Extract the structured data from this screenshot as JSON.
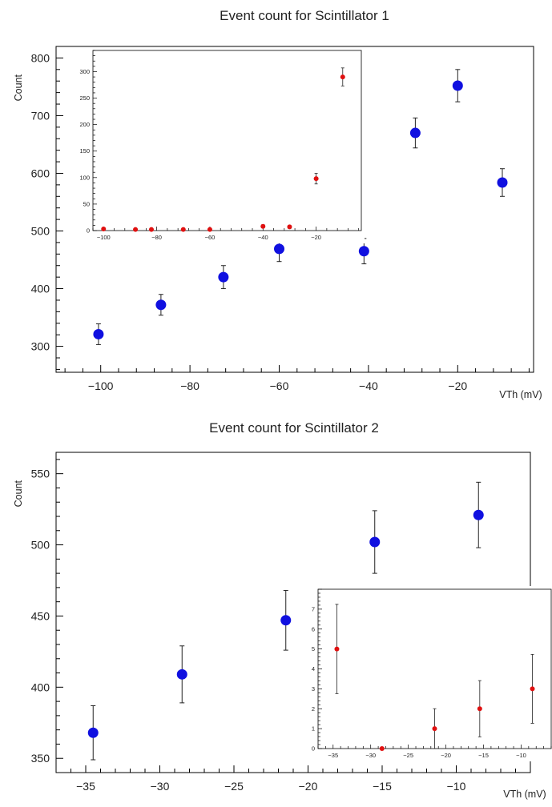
{
  "chart_data": [
    {
      "type": "scatter",
      "title": "Event count for Scintillator 1",
      "xlabel": "VTh (mV)",
      "ylabel": "Count",
      "xlim": [
        -110,
        -3
      ],
      "ylim": [
        255,
        820
      ],
      "x_ticks": [
        -100,
        -80,
        -60,
        -40,
        -20
      ],
      "y_ticks": [
        300,
        400,
        500,
        600,
        700,
        800
      ],
      "grid": false,
      "series": [
        {
          "color": "#1010e0",
          "points": [
            {
              "x": -100.5,
              "y": 321,
              "err": 18
            },
            {
              "x": -86.5,
              "y": 372,
              "err": 18
            },
            {
              "x": -72.5,
              "y": 420,
              "err": 20
            },
            {
              "x": -60,
              "y": 469,
              "err": 22
            },
            {
              "x": -41,
              "y": 465,
              "err": 22
            },
            {
              "x": -29.5,
              "y": 670,
              "err": 26
            },
            {
              "x": -20,
              "y": 752,
              "err": 28
            },
            {
              "x": -10,
              "y": 584,
              "err": 24
            }
          ]
        }
      ],
      "inset": {
        "type": "scatter",
        "xlim": [
          -104,
          -3
        ],
        "ylim": [
          0,
          340
        ],
        "x_ticks": [
          -100,
          -80,
          -60,
          -40,
          -20
        ],
        "y_ticks": [
          0,
          50,
          100,
          150,
          200,
          250,
          300
        ],
        "series": [
          {
            "color": "#e01010",
            "points": [
              {
                "x": -100,
                "y": 3,
                "err": 2
              },
              {
                "x": -88,
                "y": 2,
                "err": 1.5
              },
              {
                "x": -82,
                "y": 2,
                "err": 1.5
              },
              {
                "x": -60,
                "y": 2,
                "err": 1.5
              },
              {
                "x": -70,
                "y": 2,
                "err": 1.5
              },
              {
                "x": -40,
                "y": 8,
                "err": 3
              },
              {
                "x": -30,
                "y": 7,
                "err": 3
              },
              {
                "x": -20,
                "y": 98,
                "err": 10
              },
              {
                "x": -10,
                "y": 290,
                "err": 17
              }
            ]
          }
        ]
      }
    },
    {
      "type": "scatter",
      "title": "Event count for Scintillator 2",
      "xlabel": "VTh (mV)",
      "ylabel": "Count",
      "xlim": [
        -37,
        -5
      ],
      "ylim": [
        340,
        565
      ],
      "x_ticks": [
        -35,
        -30,
        -25,
        -20,
        -15,
        -10
      ],
      "y_ticks": [
        350,
        400,
        450,
        500,
        550
      ],
      "grid": false,
      "series": [
        {
          "color": "#1010e0",
          "points": [
            {
              "x": -34.5,
              "y": 368,
              "err": 19
            },
            {
              "x": -28.5,
              "y": 409,
              "err": 20
            },
            {
              "x": -21.5,
              "y": 447,
              "err": 21
            },
            {
              "x": -15.5,
              "y": 502,
              "err": 22
            },
            {
              "x": -8.5,
              "y": 521,
              "err": 23
            }
          ]
        }
      ],
      "inset": {
        "type": "scatter",
        "xlim": [
          -37,
          -6
        ],
        "ylim": [
          0,
          8
        ],
        "x_ticks": [
          -35,
          -30,
          -25,
          -20,
          -15,
          -10
        ],
        "y_ticks": [
          0,
          1,
          2,
          3,
          4,
          5,
          6,
          7
        ],
        "series": [
          {
            "color": "#e01010",
            "points": [
              {
                "x": -34.5,
                "y": 5,
                "err": 2.24
              },
              {
                "x": -28.5,
                "y": 0,
                "err": 0
              },
              {
                "x": -21.5,
                "y": 1,
                "err": 1
              },
              {
                "x": -15.5,
                "y": 2,
                "err": 1.41
              },
              {
                "x": -8.5,
                "y": 3,
                "err": 1.73
              }
            ]
          }
        ]
      }
    }
  ]
}
